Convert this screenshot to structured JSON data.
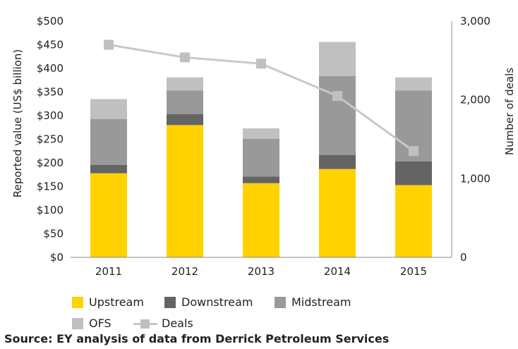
{
  "chart_data": {
    "type": "bar",
    "stacked": true,
    "categories": [
      "2011",
      "2012",
      "2013",
      "2014",
      "2015"
    ],
    "series": [
      {
        "name": "Upstream",
        "color": "#ffd200",
        "values": [
          178,
          280,
          157,
          187,
          153
        ]
      },
      {
        "name": "Downstream",
        "color": "#646464",
        "values": [
          18,
          23,
          14,
          30,
          50
        ]
      },
      {
        "name": "Midstream",
        "color": "#999999",
        "values": [
          97,
          50,
          80,
          167,
          150
        ]
      },
      {
        "name": "OFS",
        "color": "#c0c0c0",
        "values": [
          42,
          28,
          22,
          72,
          28
        ]
      }
    ],
    "line_series": {
      "name": "Deals",
      "color": "#c0c0c0",
      "axis": "right",
      "values": [
        2700,
        2540,
        2460,
        2050,
        1350
      ]
    },
    "ylabel": "Reported value (US$ billion)",
    "ylim": [
      0,
      500
    ],
    "y_ticks": [
      "$0",
      "$50",
      "$100",
      "$150",
      "$200",
      "$250",
      "$300",
      "$350",
      "$400",
      "$450",
      "$500"
    ],
    "y2label": "Number of deals",
    "y2lim": [
      0,
      3000
    ],
    "y2_ticks": [
      "0",
      "1,000",
      "2,000",
      "3,000"
    ],
    "legend_position": "bottom"
  },
  "source": "Source: EY analysis of data from Derrick Petroleum Services"
}
